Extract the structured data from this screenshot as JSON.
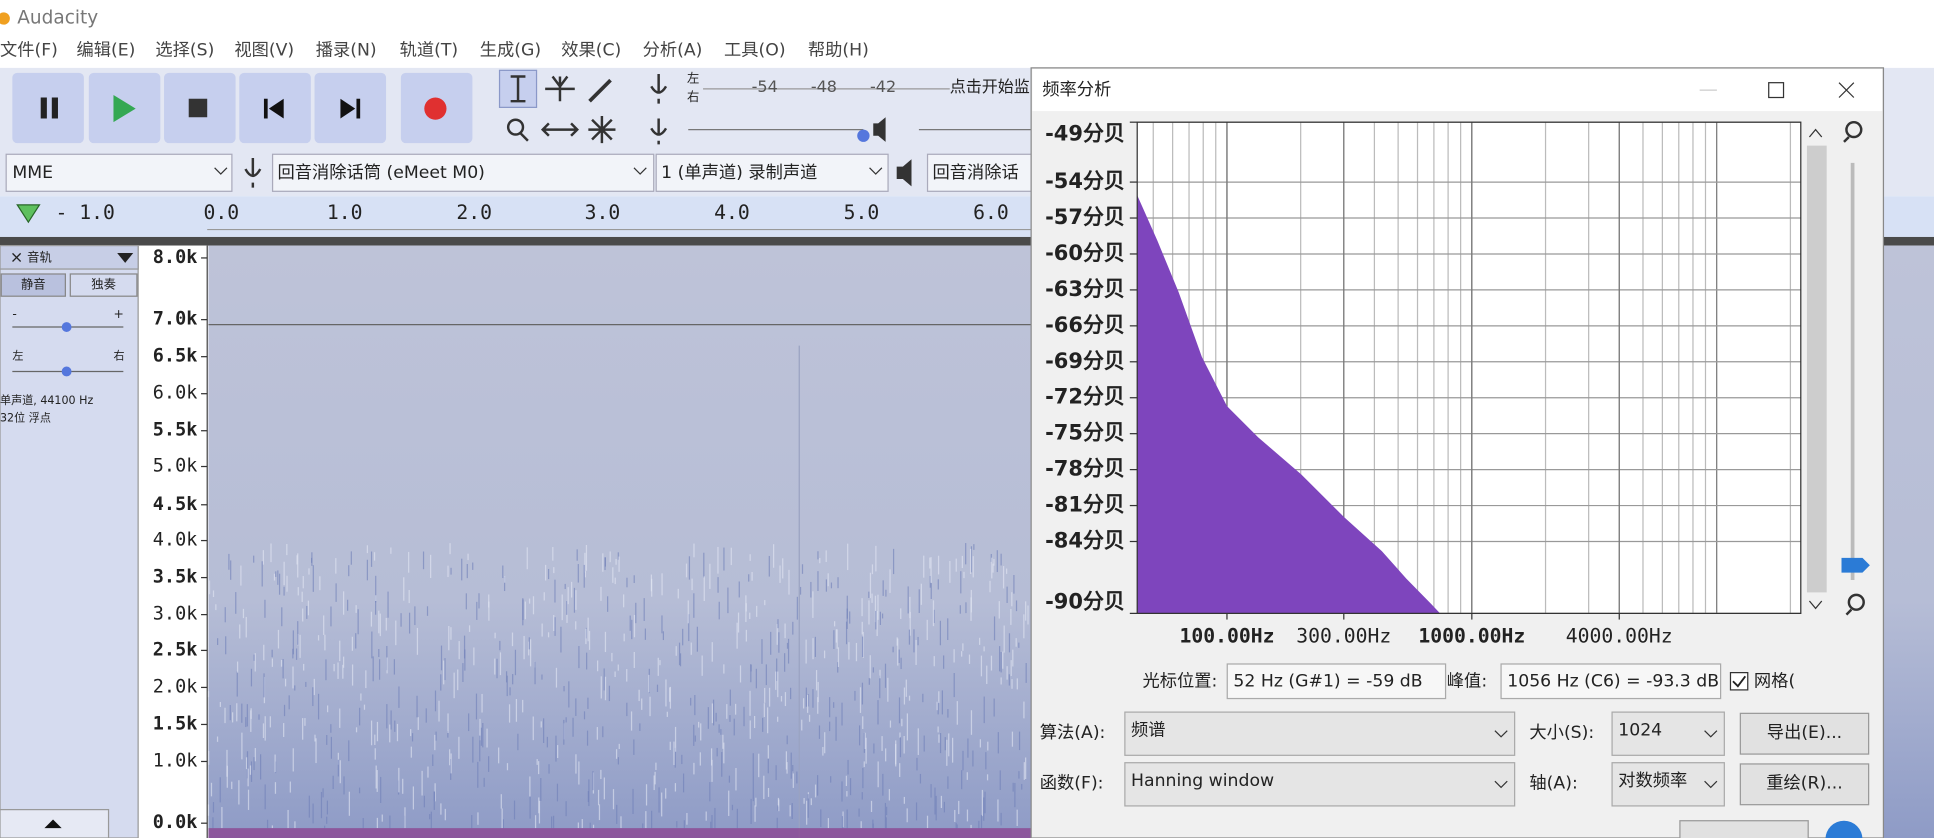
{
  "title_bar": {
    "title": "Audacity"
  },
  "menu": [
    "文件(F)",
    "编辑(E)",
    "选择(S)",
    "视图(V)",
    "播录(N)",
    "轨道(T)",
    "生成(G)",
    "效果(C)",
    "分析(A)",
    "工具(O)",
    "帮助(H)"
  ],
  "meter": {
    "channels": [
      "左",
      "右"
    ],
    "ticks": [
      -54,
      -48,
      -42
    ],
    "hint": "点击开始监"
  },
  "device_toolbar": {
    "host": "MME",
    "recording_device": "回音消除话筒 (eMeet M0)",
    "channels": "1 (单声道) 录制声道",
    "playback_device": "回音消除话"
  },
  "timeline": {
    "labels": [
      "- 1.0",
      "0.0",
      "1.0",
      "2.0",
      "3.0",
      "4.0",
      "5.0",
      "6.0"
    ]
  },
  "track": {
    "name": "音轨",
    "mute": "静音",
    "solo": "独奏",
    "gain": [
      "-",
      "+"
    ],
    "pan": [
      "左",
      "右"
    ],
    "info": [
      "单声道, 44100 Hz",
      "32位 浮点"
    ],
    "frequency_labels": [
      "8.0k",
      "7.0k",
      "6.5k",
      "6.0k",
      "5.5k",
      "5.0k",
      "4.5k",
      "4.0k",
      "3.5k",
      "3.0k",
      "2.5k",
      "2.0k",
      "1.5k",
      "1.0k",
      "0.0k"
    ]
  },
  "frequency_analysis": {
    "title": "频率分析",
    "chart_data": {
      "type": "area",
      "x": [
        43,
        52,
        63.5,
        79,
        100,
        134,
        201,
        302,
        429,
        540,
        681,
        1056
      ],
      "values": [
        -55.1,
        -58.9,
        -63.2,
        -68.6,
        -72.7,
        -75.3,
        -78.4,
        -82.0,
        -84.8,
        -87.1,
        -89.2,
        -93.3
      ],
      "color": "#7e45bd",
      "xscale": "log",
      "grid": true,
      "xlim": [
        43,
        22050
      ],
      "ylim": [
        -90,
        -49
      ],
      "xticks": [
        {
          "value": 100,
          "label": "100.00Hz"
        },
        {
          "value": 300,
          "label": "300.00Hz"
        },
        {
          "value": 1000,
          "label": "1000.00Hz"
        },
        {
          "value": 4000,
          "label": "4000.00Hz"
        }
      ],
      "yticks": [
        {
          "value": -49,
          "label": "-49分贝"
        },
        {
          "value": -54,
          "label": "-54分贝"
        },
        {
          "value": -57,
          "label": "-57分贝"
        },
        {
          "value": -60,
          "label": "-60分贝"
        },
        {
          "value": -63,
          "label": "-63分贝"
        },
        {
          "value": -66,
          "label": "-66分贝"
        },
        {
          "value": -69,
          "label": "-69分贝"
        },
        {
          "value": -72,
          "label": "-72分贝"
        },
        {
          "value": -75,
          "label": "-75分贝"
        },
        {
          "value": -78,
          "label": "-78分贝"
        },
        {
          "value": -81,
          "label": "-81分贝"
        },
        {
          "value": -84,
          "label": "-84分贝"
        },
        {
          "value": -90,
          "label": "-90分贝"
        }
      ]
    },
    "cursor_label": "光标位置:",
    "cursor_value": "52 Hz (G#1) = -59 dB",
    "peak_label": "峰值:",
    "peak_value": "1056 Hz (C6) = -93.3 dB",
    "grid_label": "网格(",
    "algorithm_label": "算法(A):",
    "algorithm": "频谱",
    "size_label": "大小(S):",
    "size": "1024",
    "export": "导出(E)...",
    "function_label": "函数(F):",
    "function": "Hanning window",
    "axis_label": "轴(A):",
    "axis": "对数频率",
    "replot": "重绘(R)..."
  }
}
